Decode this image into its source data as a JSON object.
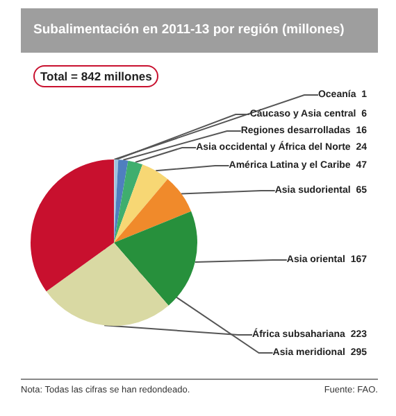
{
  "chart_data": {
    "type": "pie",
    "title": "Subalimentación en 2011-13 por región (millones)",
    "categories": [
      "Oceanía",
      "Cáucaso y Asia central",
      "Regiones desarrolladas",
      "Asia occidental y África del Norte",
      "América Latina y el Caribe",
      "Asia sudoriental",
      "Asia oriental",
      "África subsahariana",
      "Asia meridional"
    ],
    "values": [
      1,
      6,
      16,
      24,
      47,
      65,
      167,
      223,
      295
    ],
    "colors": [
      "#d4d4d4",
      "#9fc3e0",
      "#4f7fbf",
      "#3fae6e",
      "#f7d774",
      "#f08a2b",
      "#27903c",
      "#d9d9a3",
      "#c8102e"
    ],
    "data_labels": true,
    "legend": false,
    "annotations": [
      "Total = 842 millones",
      "Nota: Todas las cifras se han redondeado.",
      "Fuente: FAO."
    ]
  }
}
